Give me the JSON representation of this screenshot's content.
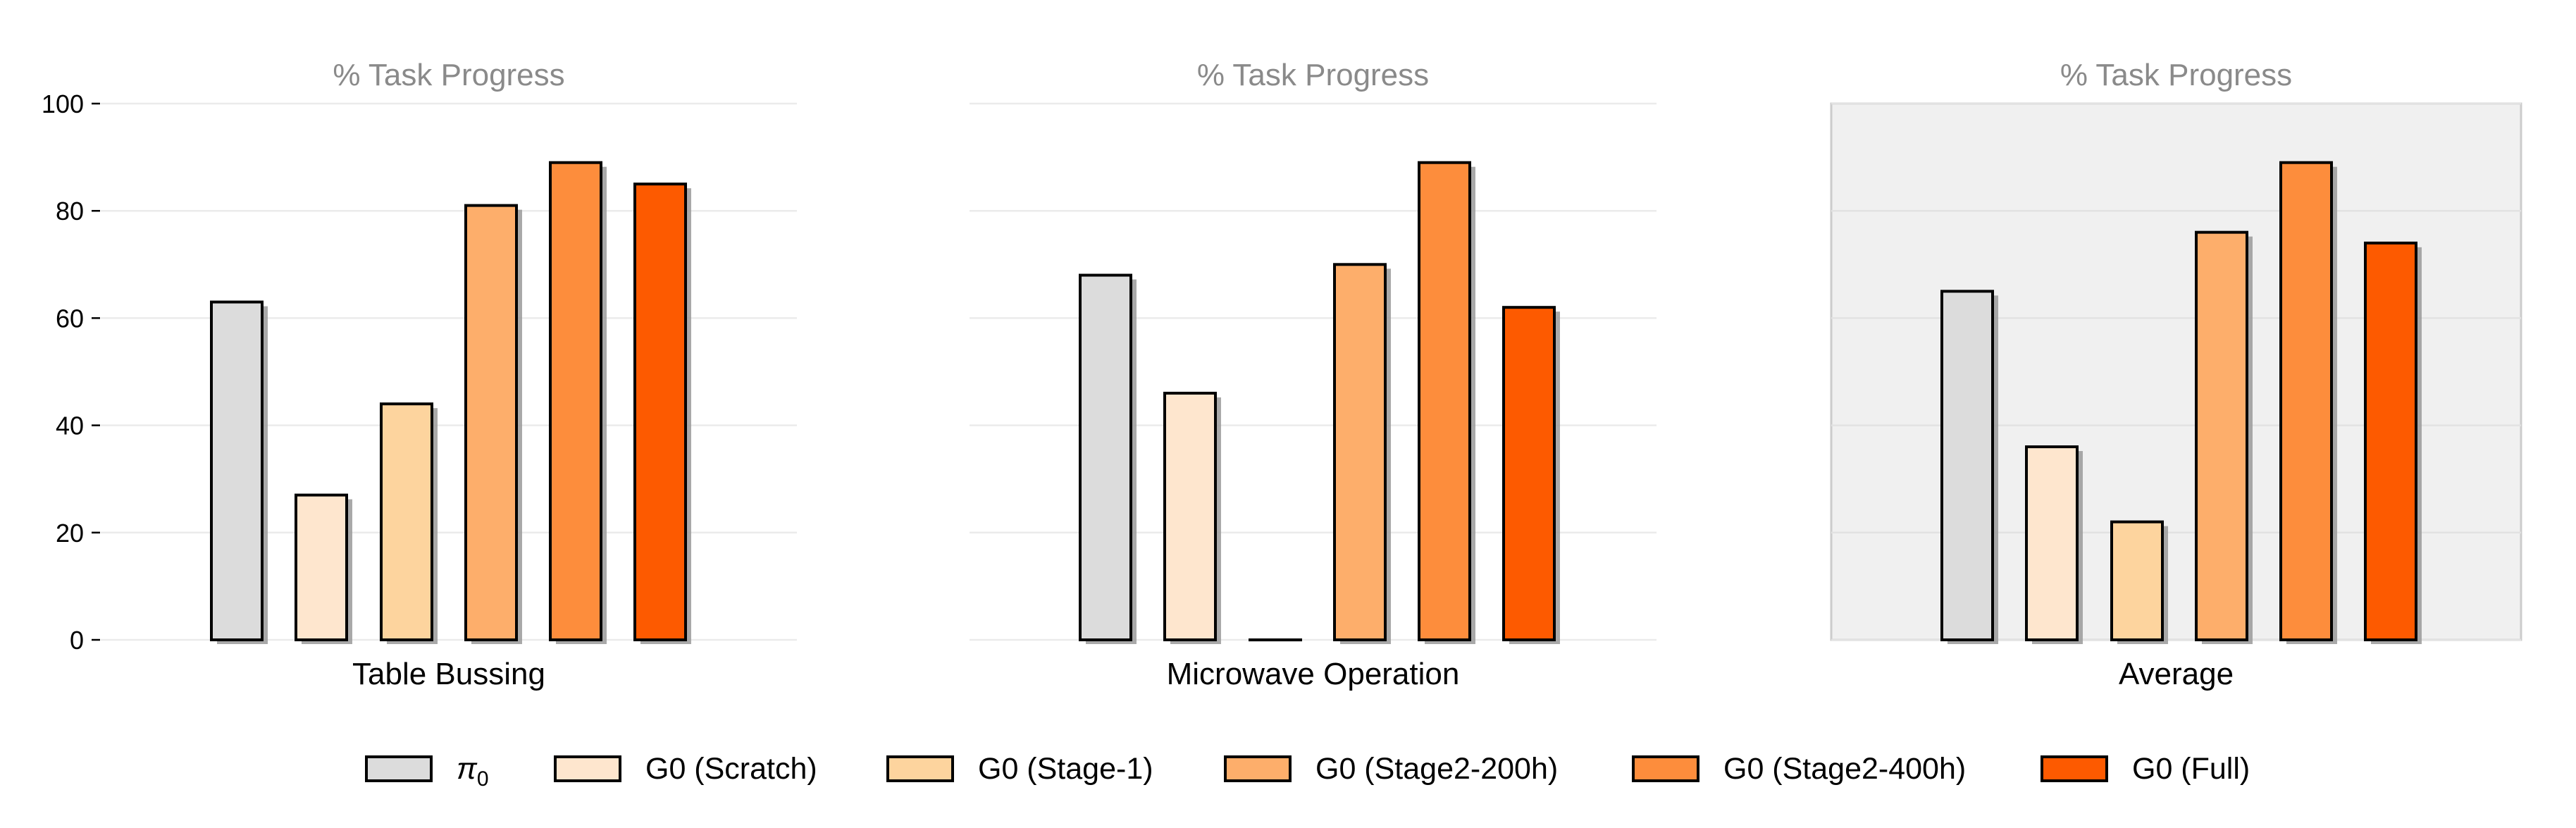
{
  "chart_data": {
    "type": "bar",
    "ylim": [
      0,
      100
    ],
    "yticks": [
      0,
      20,
      40,
      60,
      80,
      100
    ],
    "grid": true,
    "legend_placement": "bottom",
    "series": [
      {
        "name": "π",
        "subscript": "0",
        "color": "#dcdcdc"
      },
      {
        "name": "G0 (Scratch)",
        "color": "#fee6ce"
      },
      {
        "name": "G0 (Stage-1)",
        "color": "#fdd49e"
      },
      {
        "name": "G0 (Stage2-200h)",
        "color": "#fdae6b"
      },
      {
        "name": "G0 (Stage2-400h)",
        "color": "#fd8d3c"
      },
      {
        "name": "G0 (Full)",
        "color": "#fd5a00"
      }
    ],
    "panels": [
      {
        "title": "% Task Progress",
        "xlabel": "Table Bussing",
        "values": [
          63,
          27,
          44,
          81,
          89,
          85
        ],
        "shaded": false
      },
      {
        "title": "% Task Progress",
        "xlabel": "Microwave Operation",
        "values": [
          68,
          46,
          0,
          70,
          89,
          62
        ],
        "shaded": false
      },
      {
        "title": "% Task Progress",
        "xlabel": "Average",
        "values": [
          65,
          36,
          22,
          76,
          89,
          74
        ],
        "shaded": true
      }
    ]
  }
}
